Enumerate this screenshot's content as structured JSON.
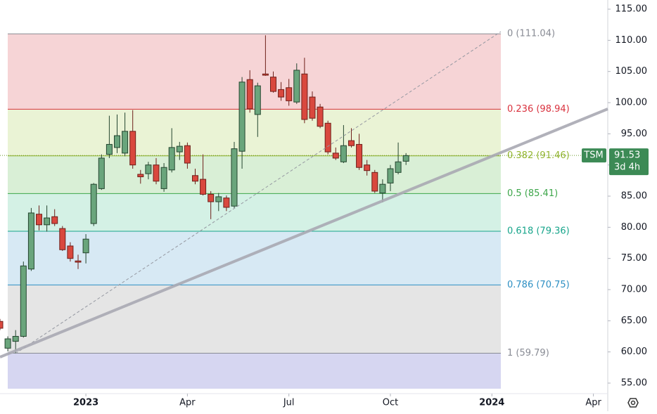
{
  "chart_data": {
    "type": "candlestick",
    "symbol": "TSM",
    "last_price": 91.53,
    "countdown": "3d 4h",
    "up_color": "#6aa57c",
    "down_color": "#d9483e",
    "x": [
      -11,
      -10,
      -9,
      -8,
      -7,
      -6,
      -5,
      -4,
      -3,
      -2,
      -1,
      0,
      1,
      2,
      3,
      4,
      5,
      6,
      7,
      8,
      9,
      10,
      11,
      12,
      13,
      14,
      15,
      16,
      17,
      18,
      19,
      20,
      21,
      22,
      23,
      24,
      25,
      26,
      27,
      28,
      29,
      30,
      31,
      32,
      33,
      34,
      35,
      36,
      37,
      38,
      39,
      40,
      41
    ],
    "open": [
      64.9,
      60.6,
      61.7,
      62.5,
      73.3,
      82.1,
      80.4,
      81.7,
      79.8,
      77.0,
      74.6,
      75.9,
      80.6,
      86.2,
      91.7,
      92.8,
      91.9,
      95.4,
      88.5,
      88.6,
      90.0,
      86.2,
      89.2,
      92.1,
      93.1,
      88.3,
      87.7,
      85.3,
      84.1,
      84.7,
      83.4,
      92.2,
      103.7,
      98.1,
      104.6,
      104.1,
      102.1,
      102.4,
      100.1,
      104.6,
      100.9,
      99.3,
      96.7,
      91.9,
      90.5,
      93.9,
      93.3,
      90.0,
      88.8,
      85.5,
      87.1,
      88.8,
      90.6
    ],
    "high": [
      65.3,
      62.5,
      63.5,
      74.5,
      83.1,
      83.5,
      83.5,
      82.9,
      80.2,
      77.6,
      75.6,
      78.9,
      87.1,
      91.7,
      97.9,
      98.1,
      98.4,
      98.8,
      89.2,
      90.5,
      91.1,
      90.3,
      95.9,
      93.7,
      93.6,
      89.4,
      91.7,
      85.8,
      85.5,
      85.1,
      93.7,
      104.1,
      105.2,
      103.2,
      110.8,
      105.0,
      103.3,
      103.8,
      106.3,
      107.2,
      101.8,
      99.8,
      97.1,
      92.8,
      96.4,
      95.9,
      95.0,
      90.8,
      89.2,
      87.7,
      90.0,
      93.6,
      91.9
    ],
    "low": [
      63.5,
      60.1,
      59.8,
      62.3,
      73.0,
      79.5,
      79.3,
      80.2,
      76.2,
      74.5,
      73.3,
      74.2,
      80.2,
      86.0,
      91.1,
      91.9,
      91.4,
      89.4,
      87.0,
      87.7,
      86.9,
      85.7,
      88.8,
      90.8,
      89.4,
      86.9,
      85.1,
      81.3,
      82.6,
      82.6,
      83.1,
      89.4,
      98.4,
      94.5,
      104.3,
      101.6,
      100.3,
      99.5,
      99.8,
      96.7,
      97.1,
      95.9,
      91.7,
      90.8,
      90.3,
      92.8,
      89.2,
      88.3,
      85.5,
      84.0,
      85.8,
      88.5,
      90.0
    ],
    "close": [
      63.8,
      62.1,
      62.5,
      73.8,
      82.3,
      80.4,
      81.5,
      80.6,
      76.4,
      75.0,
      74.4,
      78.1,
      86.9,
      91.1,
      93.3,
      94.7,
      95.4,
      90.0,
      88.1,
      90.0,
      87.4,
      89.6,
      92.8,
      93.0,
      90.3,
      87.4,
      85.3,
      84.1,
      84.9,
      83.2,
      92.6,
      103.3,
      99.0,
      102.7,
      104.4,
      101.8,
      100.9,
      100.3,
      105.2,
      97.3,
      97.5,
      96.2,
      92.1,
      91.1,
      93.1,
      93.1,
      89.6,
      89.1,
      85.8,
      86.9,
      89.4,
      90.5,
      91.5
    ],
    "xlim": [
      -11,
      66.84
    ],
    "xticks": [
      {
        "value": 0,
        "label": "2023"
      },
      {
        "value": 13,
        "label": "Apr"
      },
      {
        "value": 26,
        "label": "Jul"
      },
      {
        "value": 39,
        "label": "Oct"
      },
      {
        "value": 52,
        "label": "2024"
      },
      {
        "value": 65,
        "label": "Apr"
      }
    ],
    "ylim": [
      53.31,
      116.47
    ],
    "yticks": [
      {
        "value": 55,
        "label": "55.00"
      },
      {
        "value": 60,
        "label": "60.00"
      },
      {
        "value": 65,
        "label": "65.00"
      },
      {
        "value": 70,
        "label": "70.00"
      },
      {
        "value": 75,
        "label": "75.00"
      },
      {
        "value": 80,
        "label": "80.00"
      },
      {
        "value": 85,
        "label": "85.00"
      },
      {
        "value": 90,
        "label": "90.00"
      },
      {
        "value": 95,
        "label": "95.00"
      },
      {
        "value": 100,
        "label": "100.00"
      },
      {
        "value": 105,
        "label": "105.00"
      },
      {
        "value": 110,
        "label": "110.00"
      },
      {
        "value": 115,
        "label": "115.00"
      }
    ],
    "fib_levels": [
      {
        "label": "0 (111.04)",
        "value": 111.04,
        "color": "#888b94",
        "fill": "#f6d4d6"
      },
      {
        "label": "0.236 (98.94)",
        "value": 98.94,
        "color": "#d9313d",
        "fill": "#eaf3d5"
      },
      {
        "label": "0.382 (91.46)",
        "value": 91.46,
        "color": "#93b52e",
        "fill": "#d9efd6"
      },
      {
        "label": "0.5 (85.41)",
        "value": 85.41,
        "color": "#3da64a",
        "fill": "#d4f1e5"
      },
      {
        "label": "0.618 (79.36)",
        "value": 79.36,
        "color": "#17a58b",
        "fill": "#d7e9f4"
      },
      {
        "label": "0.786 (70.75)",
        "value": 70.75,
        "color": "#2d8fc3",
        "fill": "#e5e5e5"
      },
      {
        "label": "1 (59.79)",
        "value": 59.79,
        "color": "#888b94",
        "fill": "#d6d6f1"
      }
    ]
  }
}
